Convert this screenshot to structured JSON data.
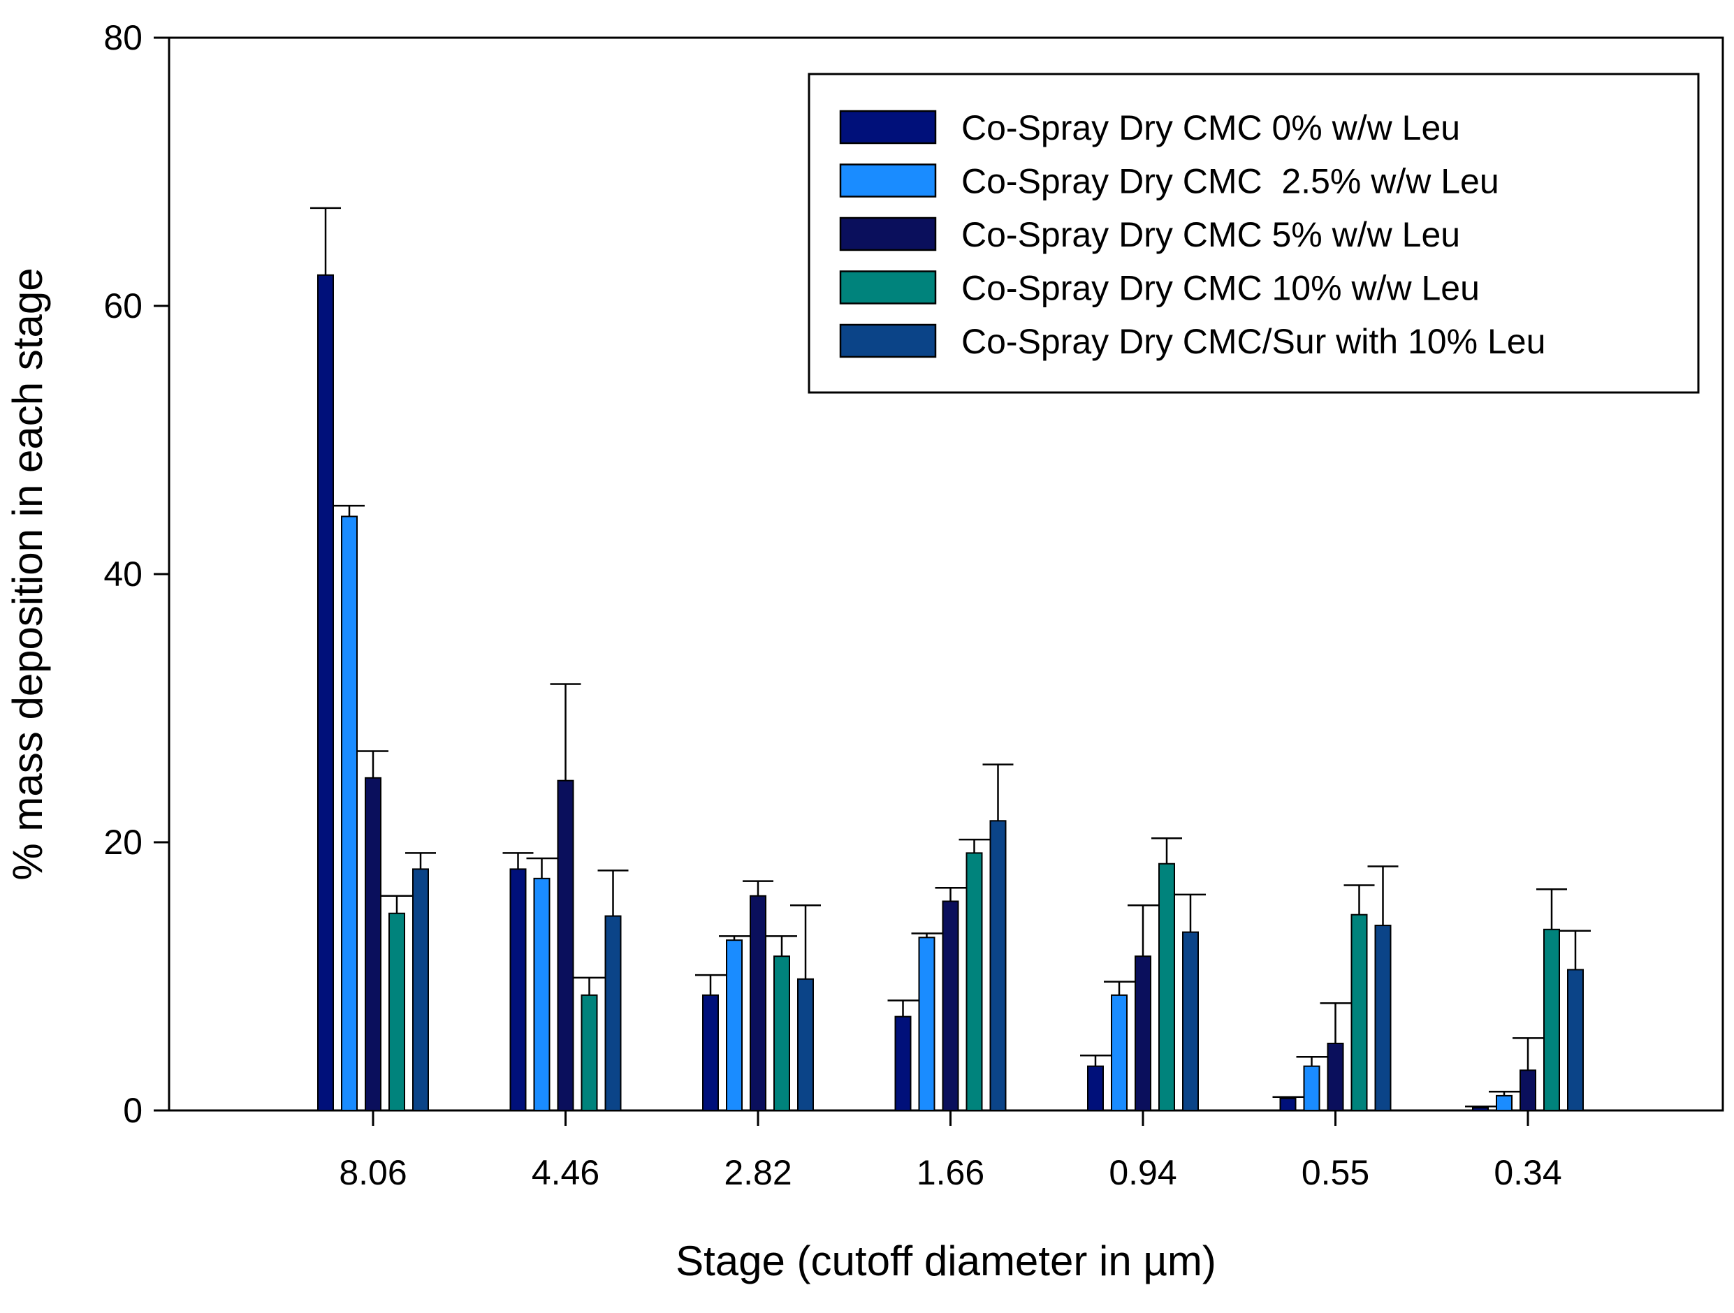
{
  "chart_data": {
    "type": "bar",
    "title": "",
    "xlabel": "Stage (cutoff diameter in µm)",
    "ylabel": "%  mass deposition in each stage",
    "ylim": [
      0,
      80
    ],
    "yticks": [
      "0",
      "20",
      "40",
      "60",
      "80"
    ],
    "categories": [
      "8.06",
      "4.46",
      "2.82",
      "1.66",
      "0.94",
      "0.55",
      "0.34"
    ],
    "error_bars": "upper",
    "legend_position": "top-right",
    "series": [
      {
        "name": "Co-Spray Dry CMC 0% w/w Leu",
        "color": "#00107a",
        "values": [
          62.3,
          18.0,
          8.6,
          7.0,
          3.3,
          0.9,
          0.2
        ],
        "errors": [
          5.0,
          1.2,
          1.5,
          1.2,
          0.8,
          0.1,
          0.1
        ]
      },
      {
        "name": "Co-Spray Dry CMC  2.5% w/w Leu",
        "color": "#1a8cff",
        "values": [
          44.3,
          17.3,
          12.7,
          12.9,
          8.6,
          3.3,
          1.1
        ],
        "errors": [
          0.8,
          1.5,
          0.3,
          0.3,
          1.0,
          0.7,
          0.3
        ]
      },
      {
        "name": "Co-Spray Dry CMC 5% w/w Leu",
        "color": "#0a0f5c",
        "values": [
          24.8,
          24.6,
          16.0,
          15.6,
          11.5,
          5.0,
          3.0
        ],
        "errors": [
          2.0,
          7.2,
          1.1,
          1.0,
          3.8,
          3.0,
          2.4
        ]
      },
      {
        "name": "Co-Spray Dry CMC 10% w/w Leu",
        "color": "#00837c",
        "values": [
          14.7,
          8.6,
          11.5,
          19.2,
          18.4,
          14.6,
          13.5
        ],
        "errors": [
          1.3,
          1.3,
          1.5,
          1.0,
          1.9,
          2.2,
          3.0
        ]
      },
      {
        "name": "Co-Spray Dry CMC/Sur with 10% Leu",
        "color": "#0b4488",
        "values": [
          18.0,
          14.5,
          9.8,
          21.6,
          13.3,
          13.8,
          10.5
        ],
        "errors": [
          1.2,
          3.4,
          5.5,
          4.2,
          2.8,
          4.4,
          2.9
        ]
      }
    ]
  }
}
